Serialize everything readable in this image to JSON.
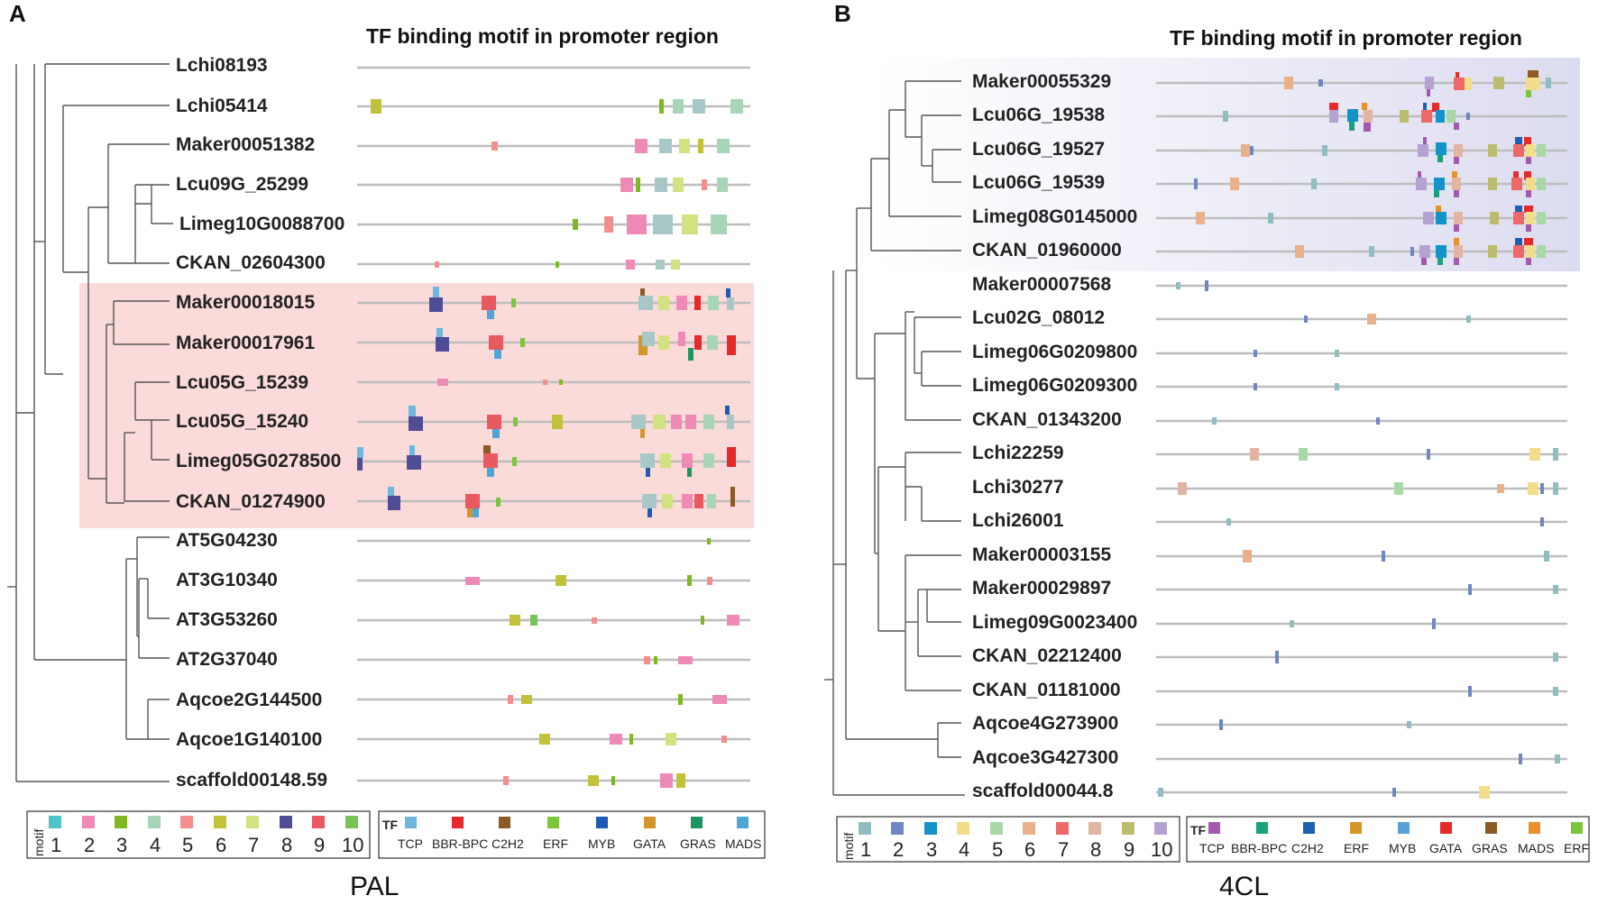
{
  "panels": [
    {
      "letter": "A",
      "title": "TF binding motif in promoter region",
      "bottom_label": "PAL",
      "genes": [
        "Lchi08193",
        "Lchi05414",
        "Maker00051382",
        "Lcu09G_25299",
        "Limeg10G0088700",
        "CKAN_02604300",
        "Maker00018015",
        "Maker00017961",
        "Lcu05G_15239",
        "Lcu05G_15240",
        "Limeg05G0278500",
        "CKAN_01274900",
        "AT5G04230",
        "AT3G10340",
        "AT3G53260",
        "AT2G37040",
        "Aqcoe2G144500",
        "Aqcoe1G140100",
        "scaffold00148.59"
      ],
      "highlight_group": [
        "Maker00018015",
        "Maker00017961",
        "Lcu05G_15239",
        "Lcu05G_15240",
        "Limeg05G0278500",
        "CKAN_01274900"
      ],
      "highlight_color": "#fbdada",
      "motif_legend": {
        "label": "motif",
        "items": [
          {
            "n": "1",
            "color": "#4ec3c8"
          },
          {
            "n": "2",
            "color": "#ef8ab6"
          },
          {
            "n": "3",
            "color": "#7fb820"
          },
          {
            "n": "4",
            "color": "#a8d5b8"
          },
          {
            "n": "5",
            "color": "#f28e8e"
          },
          {
            "n": "6",
            "color": "#c2c23a"
          },
          {
            "n": "7",
            "color": "#d2e280"
          },
          {
            "n": "8",
            "color": "#4f4d96"
          },
          {
            "n": "9",
            "color": "#e85a60"
          },
          {
            "n": "10",
            "color": "#7ac257"
          }
        ]
      },
      "tf_legend": {
        "label": "TF",
        "items": [
          {
            "name": "TCP",
            "color": "#6eb8de"
          },
          {
            "name": "BBR-BPC",
            "color": "#e42a2a"
          },
          {
            "name": "C2H2",
            "color": "#8c5a24"
          },
          {
            "name": "ERF",
            "color": "#7cc63c"
          },
          {
            "name": "MYB",
            "color": "#1f5ab3"
          },
          {
            "name": "GATA",
            "color": "#d4962a"
          },
          {
            "name": "GRAS",
            "color": "#1d9561"
          },
          {
            "name": "MADS",
            "color": "#4ea6d8"
          }
        ]
      }
    },
    {
      "letter": "B",
      "title": "TF binding motif in promoter region",
      "bottom_label": "4CL",
      "genes": [
        "Maker00055329",
        "Lcu06G_19538",
        "Lcu06G_19527",
        "Lcu06G_19539",
        "Limeg08G0145000",
        "CKAN_01960000",
        "Maker00007568",
        "Lcu02G_08012",
        "Limeg06G0209800",
        "Limeg06G0209300",
        "CKAN_01343200",
        "Lchi22259",
        "Lchi30277",
        "Lchi26001",
        "Maker00003155",
        "Maker00029897",
        "Limeg09G0023400",
        "CKAN_02212400",
        "CKAN_01181000",
        "Aqcoe4G273900",
        "Aqcoe3G427300",
        "scaffold00044.8"
      ],
      "highlight_group": [
        "Maker00055329",
        "Lcu06G_19538",
        "Lcu06G_19527",
        "Lcu06G_19539",
        "Limeg08G0145000",
        "CKAN_01960000"
      ],
      "highlight_color": "#dcdcf0",
      "motif_legend": {
        "label": "motif",
        "items": [
          {
            "n": "1",
            "color": "#8fbdc0"
          },
          {
            "n": "2",
            "color": "#6f86c2"
          },
          {
            "n": "3",
            "color": "#1493c8"
          },
          {
            "n": "4",
            "color": "#f2de8a"
          },
          {
            "n": "5",
            "color": "#a8d8a6"
          },
          {
            "n": "6",
            "color": "#eab08a"
          },
          {
            "n": "7",
            "color": "#ee6868"
          },
          {
            "n": "8",
            "color": "#e2b4a2"
          },
          {
            "n": "9",
            "color": "#bcbc6e"
          },
          {
            "n": "10",
            "color": "#b3a2d2"
          }
        ]
      },
      "tf_legend": {
        "label": "TF",
        "items": [
          {
            "name": "TCP",
            "color": "#a259b0"
          },
          {
            "name": "BBR-BPC",
            "color": "#1aa37a"
          },
          {
            "name": "C2H2",
            "color": "#1d5fb3"
          },
          {
            "name": "ERF",
            "color": "#d4962a"
          },
          {
            "name": "MYB",
            "color": "#5ba0d6"
          },
          {
            "name": "GATA",
            "color": "#e42a2a"
          },
          {
            "name": "GRAS",
            "color": "#8c5a24"
          },
          {
            "name": "MADS",
            "color": "#e8902a"
          },
          {
            "name": "ERF",
            "color": "#7cc63c"
          }
        ]
      }
    }
  ]
}
